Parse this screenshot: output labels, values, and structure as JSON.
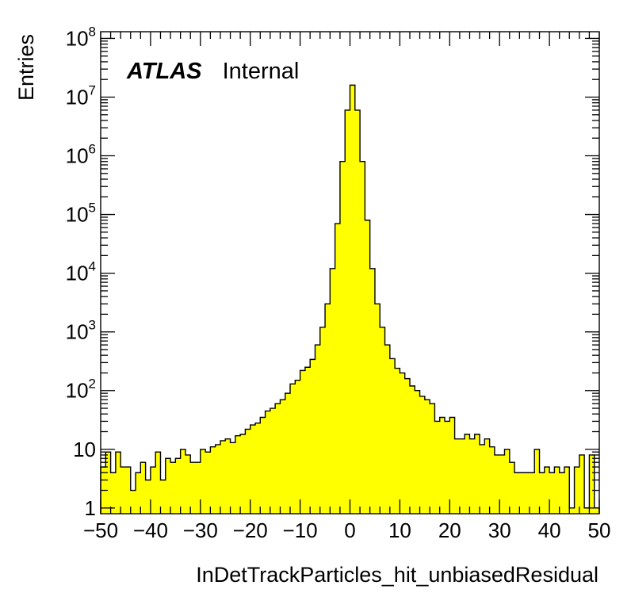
{
  "chart_data": {
    "type": "bar",
    "title": "",
    "xlabel": "InDetTrackParticles_hit_unbiasedResidual",
    "ylabel": "Entries",
    "xlim": [
      -50,
      50
    ],
    "ylim": [
      0.8,
      130000000
    ],
    "yscale": "log",
    "grid": false,
    "legend": "none",
    "bar_style": "step-filled",
    "fill_color": "#ffff00",
    "edge_color": "#000000",
    "bin_width": 1,
    "annotation": {
      "bold_italic": "ATLAS",
      "normal": "Internal"
    },
    "x_ticks": [
      {
        "value": -50,
        "label": "−50"
      },
      {
        "value": -40,
        "label": "−40"
      },
      {
        "value": -30,
        "label": "−30"
      },
      {
        "value": -20,
        "label": "−20"
      },
      {
        "value": -10,
        "label": "−10"
      },
      {
        "value": 0,
        "label": "0"
      },
      {
        "value": 10,
        "label": "10"
      },
      {
        "value": 20,
        "label": "20"
      },
      {
        "value": 30,
        "label": "30"
      },
      {
        "value": 40,
        "label": "40"
      },
      {
        "value": 50,
        "label": "50"
      }
    ],
    "y_ticks": [
      {
        "value": 1,
        "base": "1",
        "exp": ""
      },
      {
        "value": 10,
        "base": "10",
        "exp": ""
      },
      {
        "value": 100,
        "base": "10",
        "exp": "2"
      },
      {
        "value": 1000,
        "base": "10",
        "exp": "3"
      },
      {
        "value": 10000,
        "base": "10",
        "exp": "4"
      },
      {
        "value": 100000,
        "base": "10",
        "exp": "5"
      },
      {
        "value": 1000000,
        "base": "10",
        "exp": "6"
      },
      {
        "value": 10000000,
        "base": "10",
        "exp": "7"
      },
      {
        "value": 100000000,
        "base": "10",
        "exp": "8"
      }
    ],
    "x": [
      -49.5,
      -48.5,
      -47.5,
      -46.5,
      -45.5,
      -44.5,
      -43.5,
      -42.5,
      -41.5,
      -40.5,
      -39.5,
      -38.5,
      -37.5,
      -36.5,
      -35.5,
      -34.5,
      -33.5,
      -32.5,
      -31.5,
      -30.5,
      -29.5,
      -28.5,
      -27.5,
      -26.5,
      -25.5,
      -24.5,
      -23.5,
      -22.5,
      -21.5,
      -20.5,
      -19.5,
      -18.5,
      -17.5,
      -16.5,
      -15.5,
      -14.5,
      -13.5,
      -12.5,
      -11.5,
      -10.5,
      -9.5,
      -8.5,
      -7.5,
      -6.5,
      -5.5,
      -4.5,
      -3.5,
      -2.5,
      -1.5,
      -0.5,
      0.5,
      1.5,
      2.5,
      3.5,
      4.5,
      5.5,
      6.5,
      7.5,
      8.5,
      9.5,
      10.5,
      11.5,
      12.5,
      13.5,
      14.5,
      15.5,
      16.5,
      17.5,
      18.5,
      19.5,
      20.5,
      21.5,
      22.5,
      23.5,
      24.5,
      25.5,
      26.5,
      27.5,
      28.5,
      29.5,
      30.5,
      31.5,
      32.5,
      33.5,
      34.5,
      35.5,
      36.5,
      37.5,
      38.5,
      39.5,
      40.5,
      41.5,
      42.5,
      43.5,
      44.5,
      45.5,
      46.5,
      47.5,
      48.5,
      49.5
    ],
    "values": [
      5,
      9,
      4,
      9,
      5,
      5,
      2,
      4,
      6,
      3,
      5,
      9,
      3,
      7,
      6,
      7,
      10,
      8,
      6,
      6,
      10,
      9,
      11,
      12,
      14,
      15,
      13,
      17,
      18,
      22,
      26,
      28,
      35,
      45,
      50,
      60,
      70,
      90,
      130,
      150,
      220,
      250,
      340,
      600,
      1200,
      3000,
      12000,
      70000,
      800000,
      6000000,
      16000000,
      6000000,
      800000,
      80000,
      12000,
      3000,
      1200,
      600,
      350,
      240,
      200,
      160,
      120,
      100,
      80,
      70,
      60,
      30,
      35,
      30,
      35,
      15,
      15,
      18,
      15,
      18,
      12,
      15,
      11,
      8,
      8,
      10,
      6,
      4,
      4,
      4,
      4,
      10,
      4,
      5,
      4,
      5,
      4,
      5,
      1,
      5,
      8,
      1,
      8,
      1
    ]
  }
}
